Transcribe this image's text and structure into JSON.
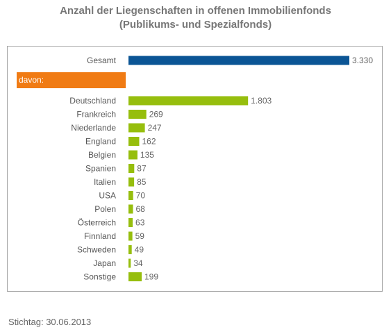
{
  "header": {
    "title": "Anzahl der Liegenschaften in offenen Immobilienfonds",
    "subtitle": "(Publikums- und Spezialfonds)"
  },
  "davon_label": "davon:",
  "footnote": "Stichtag: 30.06.2013",
  "chart_data": {
    "type": "bar",
    "orientation": "horizontal",
    "title": "Anzahl der Liegenschaften in offenen Immobilienfonds",
    "subtitle": "(Publikums- und Spezialfonds)",
    "total": {
      "category": "Gesamt",
      "value": 3330,
      "label": "3.330",
      "color": "#0b5595"
    },
    "categories": [
      "Deutschland",
      "Frankreich",
      "Niederlande",
      "England",
      "Belgien",
      "Spanien",
      "Italien",
      "USA",
      "Polen",
      "Österreich",
      "Finnland",
      "Schweden",
      "Japan",
      "Sonstige"
    ],
    "values": [
      1803,
      269,
      247,
      162,
      135,
      87,
      85,
      70,
      68,
      63,
      59,
      49,
      34,
      199
    ],
    "labels": [
      "1.803",
      "269",
      "247",
      "162",
      "135",
      "87",
      "85",
      "70",
      "68",
      "63",
      "59",
      "49",
      "34",
      "199"
    ],
    "series_color": "#96be0d",
    "xlim": [
      0,
      3330
    ],
    "grid": false
  }
}
